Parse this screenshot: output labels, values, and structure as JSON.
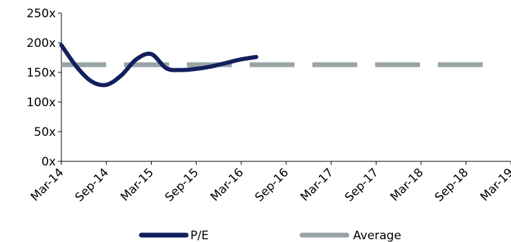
{
  "chart_data": {
    "type": "line",
    "title": "",
    "xlabel": "",
    "ylabel": "",
    "x_tick_labels": [
      "Mar-14",
      "Sep-14",
      "Mar-15",
      "Sep-15",
      "Mar-16",
      "Sep-16",
      "Mar-17",
      "Sep-17",
      "Mar-18",
      "Sep-18",
      "Mar-19"
    ],
    "y_tick_labels": [
      "0x",
      "50x",
      "100x",
      "150x",
      "200x",
      "250x"
    ],
    "ylim": [
      0,
      250
    ],
    "y_unit": "x",
    "grid": false,
    "legend_position": "bottom",
    "series": [
      {
        "name": "P/E",
        "color": "#13205e",
        "style": "solid",
        "points": [
          {
            "x": "2014-03",
            "y": 196
          },
          {
            "x": "2014-05",
            "y": 160
          },
          {
            "x": "2014-07",
            "y": 135
          },
          {
            "x": "2014-09",
            "y": 129
          },
          {
            "x": "2014-11",
            "y": 145
          },
          {
            "x": "2015-01",
            "y": 172
          },
          {
            "x": "2015-03",
            "y": 181
          },
          {
            "x": "2015-05",
            "y": 157
          },
          {
            "x": "2015-07",
            "y": 154
          },
          {
            "x": "2015-09",
            "y": 156
          },
          {
            "x": "2015-11",
            "y": 160
          },
          {
            "x": "2016-01",
            "y": 166
          },
          {
            "x": "2016-03",
            "y": 172
          },
          {
            "x": "2016-05",
            "y": 176
          }
        ]
      },
      {
        "name": "Average",
        "color": "#98a4a6",
        "style": "dashed",
        "points": [
          {
            "x": "2014-03",
            "y": 163
          },
          {
            "x": "2018-12",
            "y": 163
          }
        ]
      }
    ]
  }
}
